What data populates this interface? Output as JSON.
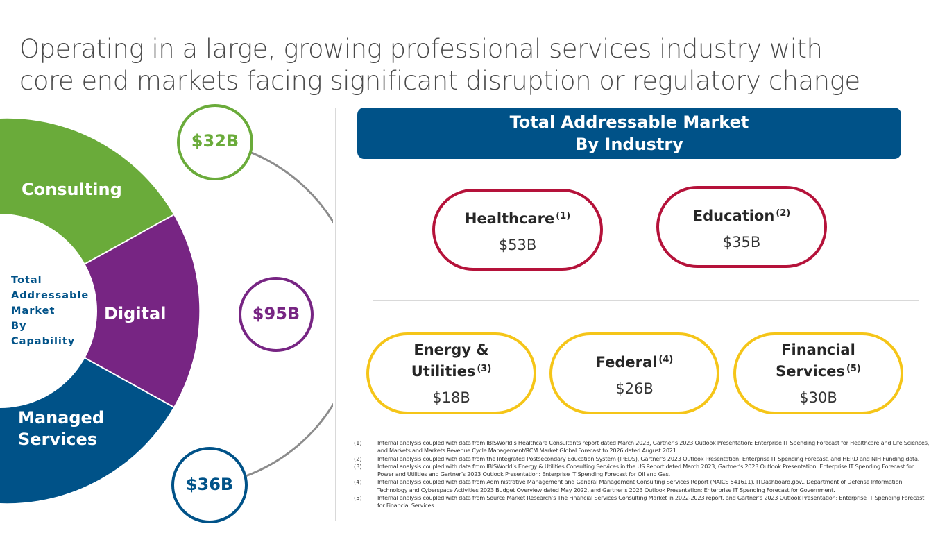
{
  "title": {
    "line1": "Operating in a large, growing professional services industry with",
    "line2": "core end markets facing significant disruption or regulatory change"
  },
  "capability": {
    "center_label": [
      "Total",
      "Addressable",
      "Market",
      "By",
      "Capability"
    ],
    "segments": [
      {
        "label_line1": "Consulting",
        "label_line2": "",
        "color": "#6aab3a"
      },
      {
        "label_line1": "Digital",
        "label_line2": "",
        "color": "#772583"
      },
      {
        "label_line1": "Managed",
        "label_line2": "Services",
        "color": "#005288"
      }
    ],
    "bubbles": [
      {
        "value": "$32B",
        "color": "#6aab3a"
      },
      {
        "value": "$95B",
        "color": "#772583"
      },
      {
        "value": "$36B",
        "color": "#005288"
      }
    ],
    "connector_color": "#8c8c8c"
  },
  "industry": {
    "header_line1": "Total Addressable Market",
    "header_line2": "By Industry",
    "header_color": "#005288",
    "items": [
      {
        "name_line1": "Healthcare",
        "name_line2": "",
        "note": "(1)",
        "value": "$53B",
        "color": "#b5123a"
      },
      {
        "name_line1": "Education",
        "name_line2": "",
        "note": "(2)",
        "value": "$35B",
        "color": "#b5123a"
      },
      {
        "name_line1": "Energy &",
        "name_line2": "Utilities",
        "note": "(3)",
        "value": "$18B",
        "color": "#f5c518"
      },
      {
        "name_line1": "Federal",
        "name_line2": "",
        "note": "(4)",
        "value": "$26B",
        "color": "#f5c518"
      },
      {
        "name_line1": "Financial",
        "name_line2": "Services",
        "note": "(5)",
        "value": "$30B",
        "color": "#f5c518"
      }
    ]
  },
  "footnotes": [
    {
      "num": "(1)",
      "text": "Internal analysis coupled with data from IBISWorld’s Healthcare Consultants report dated March 2023, Gartner’s 2023 Outlook Presentation: Enterprise IT Spending Forecast for Healthcare and Life Sciences, and Markets and Markets Revenue Cycle Management/RCM Market Global Forecast to 2026 dated August 2021."
    },
    {
      "num": "(2)",
      "text": "Internal analysis coupled with data from the Integrated Postsecondary Education System (IPEDS), Gartner’s 2023 Outlook Presentation: Enterprise IT Spending Forecast, and HERD and NIH Funding data."
    },
    {
      "num": "(3)",
      "text": "Internal analysis coupled with data from IBISWorld’s Energy & Utilities Consulting Services in the US Report dated March 2023, Gartner’s 2023 Outlook Presentation: Enterprise IT Spending Forecast for Power and Utilities and Gartner’s 2023 Outlook Presentation: Enterprise IT Spending Forecast for Oil and Gas."
    },
    {
      "num": "(4)",
      "text": "Internal analysis coupled with data from Administrative Management and General Management Consulting Services Report (NAICS 541611), ITDashboard.gov., Department of Defense Information Technology and Cyberspace Activities 2023 Budget Overview dated May 2022, and Gartner’s 2023 Outlook Presentation: Enterprise IT Spending Forecast for Government."
    },
    {
      "num": "(5)",
      "text": "Internal analysis coupled with data from Source Market Research’s The Financial Services Consulting Market in 2022-2023 report, and Gartner’s 2023 Outlook Presentation: Enterprise IT Spending Forecast for Financial Services."
    }
  ]
}
